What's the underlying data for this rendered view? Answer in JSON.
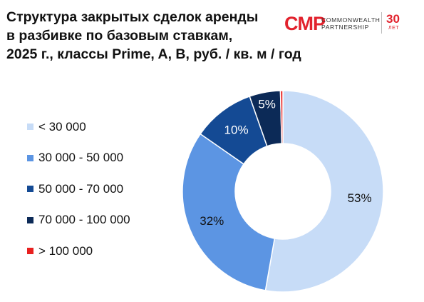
{
  "header": {
    "title_lines": [
      "Структура закрытых сделок аренды",
      "в разбивке по базовым ставкам,",
      "2025 г., классы Prime, A, B, руб. / кв. м / год"
    ]
  },
  "logo": {
    "mark": "CMP",
    "line1": "COMMONWEALTH",
    "line2": "PARTNERSHIP",
    "years": "30",
    "years_sub": "ЛЕТ",
    "color": "#e2222d"
  },
  "chart_data": {
    "type": "pie",
    "variant": "donut",
    "title": "Структура закрытых сделок аренды в разбивке по базовым ставкам, 2025 г., классы Prime, A, B, руб. / кв. м / год",
    "legend_position": "left",
    "categories": [
      "< 30 000",
      "30 000 - 50 000",
      "50 000 - 70 000",
      "70 000 - 100 000",
      "> 100 000"
    ],
    "values": [
      53,
      32,
      10,
      5,
      0.4
    ],
    "labels": [
      "53%",
      "32%",
      "10%",
      "5%",
      ""
    ],
    "colors": [
      "#c7dcf7",
      "#5c95e3",
      "#144a94",
      "#0c2a57",
      "#e8201f"
    ],
    "label_colors": [
      "#111111",
      "#111111",
      "#ffffff",
      "#ffffff",
      "#ffffff"
    ]
  }
}
